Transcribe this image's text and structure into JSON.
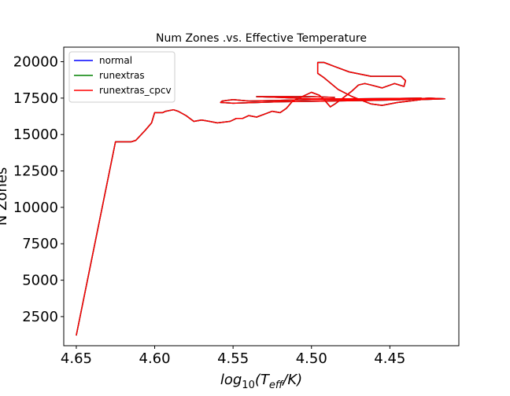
{
  "chart_data": {
    "type": "line",
    "title": "Num Zones .vs. Effective Temperature",
    "xlabel": "log",
    "xlabel_sub": "10",
    "xlabel_paren_open": "(T",
    "xlabel_eff": "eff",
    "xlabel_tail": "/K)",
    "ylabel": "N Zones",
    "xlim": [
      4.658,
      4.406
    ],
    "ylim": [
      500,
      21000
    ],
    "x_reversed": true,
    "xticks": [
      4.65,
      4.6,
      4.55,
      4.5,
      4.45
    ],
    "xtick_labels": [
      "4.65",
      "4.60",
      "4.55",
      "4.50",
      "4.45"
    ],
    "yticks": [
      2500,
      5000,
      7500,
      10000,
      12500,
      15000,
      17500,
      20000
    ],
    "ytick_labels": [
      "2500",
      "5000",
      "7500",
      "10000",
      "12500",
      "15000",
      "17500",
      "20000"
    ],
    "legend_position": "upper-left",
    "grid": false,
    "series": [
      {
        "name": "normal",
        "color": "#0000ff",
        "points": [
          [
            4.65,
            1200
          ],
          [
            4.625,
            14500
          ],
          [
            4.615,
            14500
          ],
          [
            4.612,
            14600
          ],
          [
            4.606,
            15300
          ],
          [
            4.602,
            15800
          ],
          [
            4.6,
            16500
          ],
          [
            4.595,
            16500
          ],
          [
            4.593,
            16600
          ],
          [
            4.588,
            16700
          ],
          [
            4.585,
            16600
          ],
          [
            4.58,
            16300
          ],
          [
            4.575,
            15900
          ],
          [
            4.57,
            16000
          ],
          [
            4.565,
            15900
          ],
          [
            4.56,
            15800
          ],
          [
            4.552,
            15900
          ],
          [
            4.548,
            16100
          ],
          [
            4.544,
            16100
          ],
          [
            4.54,
            16300
          ],
          [
            4.535,
            16200
          ],
          [
            4.53,
            16400
          ],
          [
            4.525,
            16600
          ],
          [
            4.52,
            16500
          ],
          [
            4.516,
            16800
          ],
          [
            4.512,
            17300
          ],
          [
            4.506,
            17600
          ],
          [
            4.5,
            17900
          ],
          [
            4.495,
            17700
          ],
          [
            4.492,
            17400
          ],
          [
            4.488,
            16900
          ],
          [
            4.485,
            17100
          ],
          [
            4.48,
            17500
          ],
          [
            4.474,
            18000
          ],
          [
            4.47,
            18400
          ],
          [
            4.466,
            18500
          ],
          [
            4.462,
            18400
          ],
          [
            4.455,
            18200
          ],
          [
            4.447,
            18500
          ],
          [
            4.441,
            18300
          ],
          [
            4.44,
            18700
          ],
          [
            4.443,
            19000
          ],
          [
            4.452,
            19000
          ],
          [
            4.462,
            19000
          ],
          [
            4.476,
            19300
          ],
          [
            4.486,
            19700
          ],
          [
            4.492,
            19950
          ],
          [
            4.496,
            19950
          ],
          [
            4.496,
            19200
          ],
          [
            4.492,
            18900
          ],
          [
            4.483,
            18100
          ],
          [
            4.474,
            17600
          ],
          [
            4.462,
            17100
          ],
          [
            4.455,
            17000
          ],
          [
            4.445,
            17200
          ],
          [
            4.43,
            17400
          ],
          [
            4.415,
            17450
          ],
          [
            4.425,
            17500
          ],
          [
            4.44,
            17400
          ],
          [
            4.46,
            17350
          ],
          [
            4.49,
            17300
          ],
          [
            4.52,
            17250
          ],
          [
            4.55,
            17150
          ],
          [
            4.558,
            17200
          ],
          [
            4.557,
            17300
          ],
          [
            4.55,
            17400
          ],
          [
            4.54,
            17300
          ],
          [
            4.52,
            17350
          ],
          [
            4.5,
            17400
          ],
          [
            4.47,
            17400
          ],
          [
            4.43,
            17450
          ],
          [
            4.43,
            17500
          ],
          [
            4.47,
            17450
          ],
          [
            4.5,
            17450
          ],
          [
            4.52,
            17550
          ],
          [
            4.535,
            17600
          ],
          [
            4.5,
            17600
          ],
          [
            4.485,
            17550
          ]
        ]
      },
      {
        "name": "runextras",
        "color": "#008000",
        "points": [
          [
            4.65,
            1200
          ],
          [
            4.625,
            14500
          ],
          [
            4.615,
            14500
          ],
          [
            4.612,
            14600
          ],
          [
            4.606,
            15300
          ],
          [
            4.602,
            15800
          ],
          [
            4.6,
            16500
          ],
          [
            4.595,
            16500
          ],
          [
            4.593,
            16600
          ],
          [
            4.588,
            16700
          ],
          [
            4.585,
            16600
          ],
          [
            4.58,
            16300
          ],
          [
            4.575,
            15900
          ],
          [
            4.57,
            16000
          ],
          [
            4.565,
            15900
          ],
          [
            4.56,
            15800
          ],
          [
            4.552,
            15900
          ],
          [
            4.548,
            16100
          ],
          [
            4.544,
            16100
          ],
          [
            4.54,
            16300
          ],
          [
            4.535,
            16200
          ],
          [
            4.53,
            16400
          ],
          [
            4.525,
            16600
          ],
          [
            4.52,
            16500
          ],
          [
            4.516,
            16800
          ],
          [
            4.512,
            17300
          ],
          [
            4.506,
            17600
          ],
          [
            4.5,
            17900
          ],
          [
            4.495,
            17700
          ],
          [
            4.492,
            17400
          ],
          [
            4.488,
            16900
          ],
          [
            4.485,
            17100
          ],
          [
            4.48,
            17500
          ],
          [
            4.474,
            18000
          ],
          [
            4.47,
            18400
          ],
          [
            4.466,
            18500
          ],
          [
            4.462,
            18400
          ],
          [
            4.455,
            18200
          ],
          [
            4.447,
            18500
          ],
          [
            4.441,
            18300
          ],
          [
            4.44,
            18700
          ],
          [
            4.443,
            19000
          ],
          [
            4.452,
            19000
          ],
          [
            4.462,
            19000
          ],
          [
            4.476,
            19300
          ],
          [
            4.486,
            19700
          ],
          [
            4.492,
            19950
          ],
          [
            4.496,
            19950
          ],
          [
            4.496,
            19200
          ],
          [
            4.492,
            18900
          ],
          [
            4.483,
            18100
          ],
          [
            4.474,
            17600
          ],
          [
            4.462,
            17100
          ],
          [
            4.455,
            17000
          ],
          [
            4.445,
            17200
          ],
          [
            4.43,
            17400
          ],
          [
            4.415,
            17450
          ],
          [
            4.425,
            17500
          ],
          [
            4.44,
            17400
          ],
          [
            4.46,
            17350
          ],
          [
            4.49,
            17300
          ],
          [
            4.52,
            17250
          ],
          [
            4.55,
            17150
          ],
          [
            4.558,
            17200
          ],
          [
            4.557,
            17300
          ],
          [
            4.55,
            17400
          ],
          [
            4.54,
            17300
          ],
          [
            4.52,
            17350
          ],
          [
            4.5,
            17400
          ],
          [
            4.47,
            17400
          ],
          [
            4.43,
            17450
          ],
          [
            4.43,
            17500
          ],
          [
            4.47,
            17450
          ],
          [
            4.5,
            17450
          ],
          [
            4.52,
            17550
          ],
          [
            4.535,
            17600
          ],
          [
            4.5,
            17600
          ],
          [
            4.485,
            17550
          ]
        ]
      },
      {
        "name": "runextras_cpcv",
        "color": "#ff0000",
        "points": [
          [
            4.65,
            1200
          ],
          [
            4.625,
            14500
          ],
          [
            4.615,
            14500
          ],
          [
            4.612,
            14600
          ],
          [
            4.606,
            15300
          ],
          [
            4.602,
            15800
          ],
          [
            4.6,
            16500
          ],
          [
            4.595,
            16500
          ],
          [
            4.593,
            16600
          ],
          [
            4.588,
            16700
          ],
          [
            4.585,
            16600
          ],
          [
            4.58,
            16300
          ],
          [
            4.575,
            15900
          ],
          [
            4.57,
            16000
          ],
          [
            4.565,
            15900
          ],
          [
            4.56,
            15800
          ],
          [
            4.552,
            15900
          ],
          [
            4.548,
            16100
          ],
          [
            4.544,
            16100
          ],
          [
            4.54,
            16300
          ],
          [
            4.535,
            16200
          ],
          [
            4.53,
            16400
          ],
          [
            4.525,
            16600
          ],
          [
            4.52,
            16500
          ],
          [
            4.516,
            16800
          ],
          [
            4.512,
            17300
          ],
          [
            4.506,
            17600
          ],
          [
            4.5,
            17900
          ],
          [
            4.495,
            17700
          ],
          [
            4.492,
            17400
          ],
          [
            4.488,
            16900
          ],
          [
            4.485,
            17100
          ],
          [
            4.48,
            17500
          ],
          [
            4.474,
            18000
          ],
          [
            4.47,
            18400
          ],
          [
            4.466,
            18500
          ],
          [
            4.462,
            18400
          ],
          [
            4.455,
            18200
          ],
          [
            4.447,
            18500
          ],
          [
            4.441,
            18300
          ],
          [
            4.44,
            18700
          ],
          [
            4.443,
            19000
          ],
          [
            4.452,
            19000
          ],
          [
            4.462,
            19000
          ],
          [
            4.476,
            19300
          ],
          [
            4.486,
            19700
          ],
          [
            4.492,
            19950
          ],
          [
            4.496,
            19950
          ],
          [
            4.496,
            19200
          ],
          [
            4.492,
            18900
          ],
          [
            4.483,
            18100
          ],
          [
            4.474,
            17600
          ],
          [
            4.462,
            17100
          ],
          [
            4.455,
            17000
          ],
          [
            4.445,
            17200
          ],
          [
            4.43,
            17400
          ],
          [
            4.415,
            17450
          ],
          [
            4.425,
            17500
          ],
          [
            4.44,
            17400
          ],
          [
            4.46,
            17350
          ],
          [
            4.49,
            17300
          ],
          [
            4.52,
            17250
          ],
          [
            4.55,
            17150
          ],
          [
            4.558,
            17200
          ],
          [
            4.557,
            17300
          ],
          [
            4.55,
            17400
          ],
          [
            4.54,
            17300
          ],
          [
            4.52,
            17350
          ],
          [
            4.5,
            17400
          ],
          [
            4.47,
            17400
          ],
          [
            4.43,
            17450
          ],
          [
            4.43,
            17500
          ],
          [
            4.47,
            17450
          ],
          [
            4.5,
            17450
          ],
          [
            4.52,
            17550
          ],
          [
            4.535,
            17600
          ],
          [
            4.5,
            17600
          ],
          [
            4.485,
            17550
          ]
        ]
      }
    ]
  }
}
